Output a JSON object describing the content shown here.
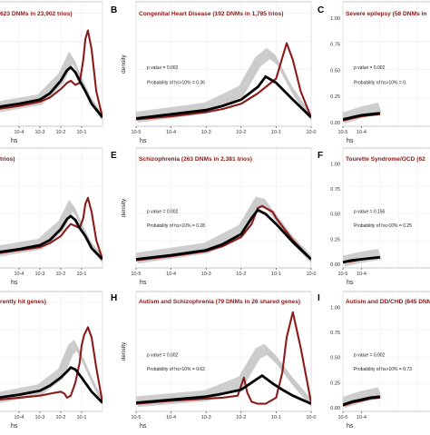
{
  "figure": {
    "legend_colors": {
      "observed": "#8b1a1a",
      "expected": "#000000",
      "simulations": "#c8c8c8"
    },
    "panels": [
      {
        "letter": "",
        "title": "623 DNMs in 23,902 trios)",
        "pvalue_text": "",
        "prob_text": "",
        "xlabel": "hs",
        "ylabel": ""
      },
      {
        "letter": "B",
        "title": "Congenital Heart Disease (192 DNMs in 1,785 trios)",
        "pvalue_text": "p value = 0.002",
        "prob_text": "Probability of hs>10% = 0.36",
        "xlabel": "hs",
        "ylabel": "density"
      },
      {
        "letter": "C",
        "title": "Severe epilepsy (58 DNMs in",
        "pvalue_text": "p value = 0.002",
        "prob_text": "Probability of hs>10% = 0.",
        "xlabel": "hs",
        "ylabel": ""
      },
      {
        "letter": "",
        "title": "trios)",
        "pvalue_text": "",
        "prob_text": "",
        "xlabel": "hs",
        "ylabel": ""
      },
      {
        "letter": "E",
        "title": "Schizophrenia (263 DNMs in 2,381 trios)",
        "pvalue_text": "p value = 0.002",
        "prob_text": "Probability of hs>10% = 0.28",
        "xlabel": "hs",
        "ylabel": "density"
      },
      {
        "letter": "F",
        "title": "Tourette Syndrome/OCD (62",
        "pvalue_text": "p value = 0.156",
        "prob_text": "Probability of hs>10% = 0.25",
        "xlabel": "hs",
        "ylabel": ""
      },
      {
        "letter": "",
        "title": "rently hit genes)",
        "pvalue_text": "",
        "prob_text": "",
        "xlabel": "hs",
        "ylabel": ""
      },
      {
        "letter": "H",
        "title": "Autism and Schizophrenia (79 DNMs in 26 shared genes)",
        "pvalue_text": "p value = 0.002",
        "prob_text": "Probability of hs>10% = 0.62",
        "xlabel": "hs",
        "ylabel": "density"
      },
      {
        "letter": "I",
        "title": "Autism and DD/CHD (845 DNM",
        "pvalue_text": "p value = 0.002",
        "prob_text": "Probability of hs>10% = 0.73",
        "xlabel": "hs",
        "ylabel": ""
      }
    ]
  },
  "chart_data": [
    {
      "type": "line",
      "title": "623 DNMs in 23,902 trios)",
      "xlabel": "hs",
      "ylabel": "",
      "x_scale": "log10",
      "xticks": [
        "10-4",
        "10-3",
        "10-2",
        "10-1"
      ],
      "yticks": [],
      "series": [
        {
          "role": "expected",
          "color": "#000000",
          "x": [
            1e-05,
            0.0001,
            0.001,
            0.003,
            0.01,
            0.02,
            0.03,
            0.05,
            0.08,
            0.15,
            0.3,
            1
          ],
          "y": [
            0.15,
            0.18,
            0.22,
            0.28,
            0.4,
            0.5,
            0.53,
            0.48,
            0.4,
            0.3,
            0.18,
            0.05
          ]
        },
        {
          "role": "observed",
          "color": "#8b1a1a",
          "x": [
            1e-05,
            0.0001,
            0.001,
            0.003,
            0.01,
            0.02,
            0.03,
            0.05,
            0.08,
            0.12,
            0.15,
            0.2,
            0.3,
            0.5,
            1
          ],
          "y": [
            0.13,
            0.16,
            0.2,
            0.24,
            0.32,
            0.38,
            0.4,
            0.36,
            0.38,
            0.6,
            0.8,
            0.88,
            0.7,
            0.3,
            0.05
          ]
        },
        {
          "role": "simulations",
          "color": "#c8c8c8",
          "x": [
            1e-05,
            0.001,
            0.01,
            0.03,
            0.05,
            0.1,
            0.3,
            1
          ],
          "y": [
            0.15,
            0.22,
            0.42,
            0.62,
            0.55,
            0.4,
            0.2,
            0.05
          ]
        }
      ]
    },
    {
      "type": "line",
      "title": "Congenital Heart Disease (192 DNMs in 1,785 trios)",
      "xlabel": "hs",
      "ylabel": "density",
      "x_scale": "log10",
      "xticks": [
        "10-5",
        "10-4",
        "10-3",
        "10-2",
        "10-1",
        "10-0"
      ],
      "yticks": [],
      "series": [
        {
          "role": "expected",
          "color": "#000000",
          "x": [
            1e-05,
            0.0001,
            0.001,
            0.003,
            0.01,
            0.03,
            0.05,
            0.1,
            0.3,
            1
          ],
          "y": [
            0.04,
            0.08,
            0.12,
            0.16,
            0.22,
            0.34,
            0.44,
            0.38,
            0.22,
            0.05
          ]
        },
        {
          "role": "observed",
          "color": "#8b1a1a",
          "x": [
            1e-05,
            0.0001,
            0.001,
            0.003,
            0.01,
            0.03,
            0.06,
            0.1,
            0.15,
            0.2,
            0.3,
            0.5,
            1
          ],
          "y": [
            0.03,
            0.06,
            0.1,
            0.13,
            0.18,
            0.28,
            0.36,
            0.42,
            0.62,
            0.76,
            0.6,
            0.3,
            0.05
          ]
        },
        {
          "role": "simulations",
          "color": "#c8c8c8",
          "x": [
            1e-05,
            0.001,
            0.01,
            0.03,
            0.06,
            0.1,
            0.3,
            1
          ],
          "y": [
            0.05,
            0.14,
            0.3,
            0.58,
            0.66,
            0.6,
            0.3,
            0.05
          ]
        }
      ]
    },
    {
      "type": "line",
      "title": "Severe epilepsy (58 DNMs in",
      "xlabel": "hs",
      "ylabel": "",
      "x_scale": "log10",
      "xticks": [
        "10-5",
        "10-4"
      ],
      "yticks": [
        "0.00",
        "0.25",
        "0.50",
        "0.75",
        "1.00"
      ],
      "ylim": [
        0,
        1
      ],
      "series": [
        {
          "role": "expected",
          "color": "#000000",
          "x": [
            1e-05,
            3e-05,
            0.0001,
            0.0003,
            0.001
          ],
          "y": [
            0.03,
            0.05,
            0.07,
            0.08,
            0.09
          ]
        },
        {
          "role": "observed",
          "color": "#8b1a1a",
          "x": [
            1e-05,
            3e-05,
            0.0001,
            0.0003,
            0.001
          ],
          "y": [
            0.02,
            0.04,
            0.06,
            0.07,
            0.08
          ]
        },
        {
          "role": "simulations",
          "color": "#c8c8c8",
          "x": [
            1e-05,
            0.0001,
            0.001
          ],
          "y": [
            0.04,
            0.1,
            0.14
          ]
        }
      ]
    },
    {
      "type": "line",
      "title": "trios)",
      "xlabel": "hs",
      "ylabel": "",
      "x_scale": "log10",
      "xticks": [
        "10-4",
        "10-3",
        "10-2",
        "10-1"
      ],
      "yticks": [],
      "series": [
        {
          "role": "expected",
          "color": "#000000",
          "x": [
            1e-05,
            0.0001,
            0.001,
            0.003,
            0.01,
            0.02,
            0.03,
            0.05,
            0.08,
            0.15,
            0.3,
            1
          ],
          "y": [
            0.12,
            0.15,
            0.19,
            0.24,
            0.35,
            0.45,
            0.48,
            0.44,
            0.36,
            0.28,
            0.16,
            0.05
          ]
        },
        {
          "role": "observed",
          "color": "#8b1a1a",
          "x": [
            1e-05,
            0.0001,
            0.001,
            0.003,
            0.01,
            0.02,
            0.03,
            0.05,
            0.08,
            0.12,
            0.15,
            0.2,
            0.3,
            0.5,
            1
          ],
          "y": [
            0.11,
            0.14,
            0.17,
            0.21,
            0.28,
            0.36,
            0.4,
            0.38,
            0.36,
            0.46,
            0.6,
            0.66,
            0.52,
            0.24,
            0.05
          ]
        },
        {
          "role": "simulations",
          "color": "#c8c8c8",
          "x": [
            1e-05,
            0.001,
            0.01,
            0.03,
            0.05,
            0.1,
            0.3,
            1
          ],
          "y": [
            0.13,
            0.2,
            0.38,
            0.58,
            0.52,
            0.38,
            0.18,
            0.05
          ]
        }
      ]
    },
    {
      "type": "line",
      "title": "Schizophrenia (263 DNMs in 2,381 trios)",
      "xlabel": "hs",
      "ylabel": "density",
      "x_scale": "log10",
      "xticks": [
        "10-5",
        "10-4",
        "10-3",
        "10-2",
        "10-1",
        "10-0"
      ],
      "yticks": [],
      "series": [
        {
          "role": "expected",
          "color": "#000000",
          "x": [
            1e-05,
            0.0001,
            0.001,
            0.003,
            0.01,
            0.02,
            0.03,
            0.05,
            0.1,
            0.3,
            1
          ],
          "y": [
            0.05,
            0.09,
            0.14,
            0.2,
            0.3,
            0.46,
            0.54,
            0.5,
            0.4,
            0.22,
            0.05
          ]
        },
        {
          "role": "observed",
          "color": "#8b1a1a",
          "x": [
            1e-05,
            0.0001,
            0.001,
            0.003,
            0.01,
            0.02,
            0.03,
            0.04,
            0.05,
            0.08,
            0.1,
            0.3,
            1
          ],
          "y": [
            0.04,
            0.08,
            0.13,
            0.18,
            0.27,
            0.4,
            0.56,
            0.58,
            0.56,
            0.52,
            0.46,
            0.24,
            0.05
          ]
        },
        {
          "role": "simulations",
          "color": "#c8c8c8",
          "x": [
            1e-05,
            0.001,
            0.01,
            0.03,
            0.05,
            0.1,
            0.3,
            1
          ],
          "y": [
            0.06,
            0.16,
            0.34,
            0.62,
            0.6,
            0.46,
            0.24,
            0.05
          ]
        }
      ]
    },
    {
      "type": "line",
      "title": "Tourette Syndrome/OCD (62",
      "xlabel": "hs",
      "ylabel": "",
      "x_scale": "log10",
      "xticks": [
        "10-5",
        "10-4"
      ],
      "yticks": [
        "0.00",
        "0.25",
        "0.50",
        "0.75",
        "1.00"
      ],
      "ylim": [
        0,
        1
      ],
      "series": [
        {
          "role": "expected",
          "color": "#000000",
          "x": [
            1e-05,
            3e-05,
            0.0001,
            0.0003,
            0.001
          ],
          "y": [
            0.02,
            0.04,
            0.05,
            0.06,
            0.07
          ]
        },
        {
          "role": "observed",
          "color": "#8b1a1a",
          "x": [
            1e-05,
            3e-05,
            0.0001,
            0.0003,
            0.001
          ],
          "y": [
            0.02,
            0.03,
            0.05,
            0.06,
            0.07
          ]
        },
        {
          "role": "simulations",
          "color": "#c8c8c8",
          "x": [
            1e-05,
            0.0001,
            0.001
          ],
          "y": [
            0.03,
            0.07,
            0.1
          ]
        }
      ]
    },
    {
      "type": "line",
      "title": "rently hit genes)",
      "xlabel": "hs",
      "ylabel": "",
      "x_scale": "log10",
      "xticks": [
        "10-4",
        "10-3",
        "10-2",
        "10-1"
      ],
      "yticks": [],
      "series": [
        {
          "role": "expected",
          "color": "#000000",
          "x": [
            1e-05,
            0.0001,
            0.001,
            0.003,
            0.01,
            0.02,
            0.03,
            0.05,
            0.1,
            0.3,
            1
          ],
          "y": [
            0.1,
            0.13,
            0.17,
            0.22,
            0.3,
            0.36,
            0.4,
            0.38,
            0.3,
            0.16,
            0.05
          ]
        },
        {
          "role": "observed",
          "color": "#8b1a1a",
          "x": [
            1e-05,
            0.0001,
            0.001,
            0.003,
            0.01,
            0.015,
            0.02,
            0.03,
            0.05,
            0.08,
            0.1,
            0.13,
            0.2,
            0.3,
            0.5,
            1
          ],
          "y": [
            0.08,
            0.1,
            0.12,
            0.14,
            0.16,
            0.14,
            0.1,
            0.12,
            0.25,
            0.45,
            0.62,
            0.72,
            0.8,
            0.7,
            0.4,
            0.05
          ]
        },
        {
          "role": "simulations",
          "color": "#c8c8c8",
          "x": [
            1e-05,
            0.001,
            0.01,
            0.03,
            0.05,
            0.1,
            0.3,
            1
          ],
          "y": [
            0.1,
            0.18,
            0.34,
            0.58,
            0.62,
            0.5,
            0.28,
            0.05
          ]
        }
      ]
    },
    {
      "type": "line",
      "title": "Autism and Schizophrenia (79 DNMs in 26 shared genes)",
      "xlabel": "hs",
      "ylabel": "density",
      "x_scale": "log10",
      "xticks": [
        "10-5",
        "10-4",
        "10-3",
        "10-2",
        "10-1",
        "10-0"
      ],
      "yticks": [],
      "series": [
        {
          "role": "expected",
          "color": "#000000",
          "x": [
            1e-05,
            0.0001,
            0.001,
            0.003,
            0.01,
            0.02,
            0.04,
            0.08,
            0.15,
            0.3,
            1
          ],
          "y": [
            0.05,
            0.08,
            0.11,
            0.14,
            0.18,
            0.25,
            0.32,
            0.24,
            0.18,
            0.12,
            0.04
          ]
        },
        {
          "role": "observed",
          "color": "#8b1a1a",
          "x": [
            1e-05,
            0.0001,
            0.001,
            0.003,
            0.008,
            0.012,
            0.015,
            0.02,
            0.03,
            0.05,
            0.1,
            0.15,
            0.2,
            0.3,
            0.5,
            1
          ],
          "y": [
            0.04,
            0.07,
            0.09,
            0.1,
            0.12,
            0.3,
            0.15,
            0.06,
            0.04,
            0.04,
            0.1,
            0.35,
            0.7,
            0.95,
            0.6,
            0.05
          ]
        },
        {
          "role": "simulations",
          "color": "#c8c8c8",
          "x": [
            1e-05,
            0.001,
            0.01,
            0.03,
            0.05,
            0.1,
            0.3,
            1
          ],
          "y": [
            0.06,
            0.12,
            0.26,
            0.54,
            0.58,
            0.48,
            0.26,
            0.05
          ]
        }
      ]
    },
    {
      "type": "line",
      "title": "Autism and DD/CHD (845 DNM",
      "xlabel": "hs",
      "ylabel": "",
      "x_scale": "log10",
      "xticks": [
        "10-5",
        "10-4"
      ],
      "yticks": [
        "0.00",
        "0.25",
        "0.50",
        "0.75",
        "1.00"
      ],
      "ylim": [
        0,
        1
      ],
      "series": [
        {
          "role": "expected",
          "color": "#000000",
          "x": [
            1e-05,
            3e-05,
            0.0001,
            0.0003,
            0.001
          ],
          "y": [
            0.03,
            0.06,
            0.08,
            0.1,
            0.11
          ]
        },
        {
          "role": "observed",
          "color": "#8b1a1a",
          "x": [
            1e-05,
            3e-05,
            0.0001,
            0.0003,
            0.001
          ],
          "y": [
            0.02,
            0.05,
            0.07,
            0.09,
            0.1
          ]
        },
        {
          "role": "simulations",
          "color": "#c8c8c8",
          "x": [
            1e-05,
            0.0001,
            0.001
          ],
          "y": [
            0.05,
            0.11,
            0.15
          ]
        }
      ]
    }
  ]
}
